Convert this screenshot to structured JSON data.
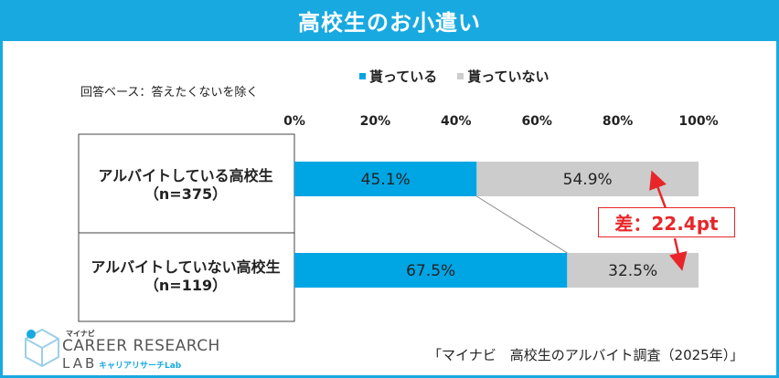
{
  "title": "高校生のお小遣い",
  "base_note": "回答ベース：答えたくないを除く",
  "colors": {
    "accent": "#19a9e1",
    "gets": "#00a5e3",
    "not_gets": "#cccccc",
    "diff": "#e8262a"
  },
  "chart_data": {
    "type": "bar",
    "orientation": "horizontal",
    "stacked": true,
    "percent": true,
    "categories": [
      "アルバイトしている高校生（n=375）",
      "アルバイトしていない高校生（n=119）"
    ],
    "category_lines": [
      [
        "アルバイトしている高校生",
        "（n=375）"
      ],
      [
        "アルバイトしていない高校生",
        "（n=119）"
      ]
    ],
    "series": [
      {
        "name": "貰っている",
        "values": [
          45.1,
          67.5
        ],
        "color": "#00a5e3"
      },
      {
        "name": "貰っていない",
        "values": [
          54.9,
          32.5
        ],
        "color": "#cccccc"
      }
    ],
    "data_labels": [
      [
        "45.1%",
        "67.5%"
      ],
      [
        "54.9%",
        "32.5%"
      ]
    ],
    "x_ticks": [
      "0%",
      "20%",
      "40%",
      "60%",
      "80%",
      "100%"
    ],
    "xlim": [
      0,
      100
    ],
    "legend_position": "top",
    "annotation": "差：22.4pt"
  },
  "logo": {
    "small": "マイナビ",
    "main": "CAREER RESEARCH",
    "lab": "LAB",
    "sub": "キャリアリサーチLab"
  },
  "source": "「マイナビ　高校生のアルバイト調査（2025年）」"
}
